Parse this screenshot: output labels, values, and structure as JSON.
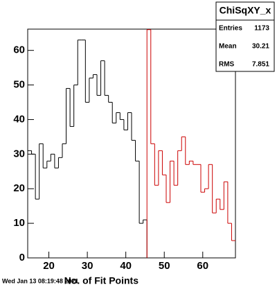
{
  "chart_data": {
    "type": "histogram",
    "title": "ChiSqXY_x",
    "stats": {
      "labels": [
        "Entries",
        "Mean",
        "RMS"
      ],
      "values": [
        1173,
        30.21,
        7.851
      ]
    },
    "x_label": "No. of Fit Points",
    "footer": "Wed Jan 13 08:19:48 2021",
    "bins": [
      14.5,
      15.5,
      16.5,
      17.5,
      18.5,
      19.5,
      20.5,
      21.5,
      22.5,
      23.5,
      24.5,
      25.5,
      26.5,
      27.5,
      28.5,
      29.5,
      30.5,
      31.5,
      32.5,
      33.5,
      34.5,
      35.5,
      36.5,
      37.5,
      38.5,
      39.5,
      40.5,
      41.5,
      42.5,
      43.5,
      44.5,
      45.5,
      46.5,
      47.5,
      48.5,
      49.5,
      50.5,
      51.5,
      52.5,
      53.5,
      54.5,
      55.5,
      56.5,
      57.5,
      58.5,
      59.5,
      60.5,
      61.5,
      62.5,
      63.5,
      64.5,
      65.5,
      66.5,
      67.5,
      68.5
    ],
    "series": [
      {
        "color": "#000000",
        "values": [
          31,
          30,
          17,
          33,
          26,
          28,
          30,
          26,
          29,
          33,
          49,
          38,
          50,
          63,
          63,
          45,
          52,
          53,
          47,
          57,
          47,
          45,
          39,
          42,
          40,
          37,
          42,
          34,
          28,
          10,
          11,
          0,
          0,
          0,
          0,
          0,
          0,
          0,
          0,
          0,
          0,
          0,
          0,
          0,
          0,
          0,
          0,
          0,
          0,
          0,
          0,
          0,
          0,
          0
        ]
      },
      {
        "color": "#cc0000",
        "values": [
          null,
          null,
          null,
          null,
          null,
          null,
          null,
          null,
          null,
          null,
          null,
          null,
          null,
          null,
          null,
          null,
          null,
          null,
          null,
          null,
          null,
          null,
          null,
          null,
          null,
          null,
          null,
          null,
          null,
          null,
          null,
          66,
          33,
          21,
          31,
          24,
          16,
          28,
          21,
          31,
          35,
          27,
          28,
          27,
          27,
          19,
          20,
          27,
          13,
          17,
          14,
          22,
          10,
          5
        ]
      }
    ],
    "xlim": [
      14.5,
      68.5
    ],
    "ylim": [
      0,
      66.15
    ],
    "xticks": [
      20,
      30,
      40,
      50,
      60
    ],
    "yticks": [
      0,
      10,
      20,
      30,
      40,
      50,
      60
    ]
  }
}
